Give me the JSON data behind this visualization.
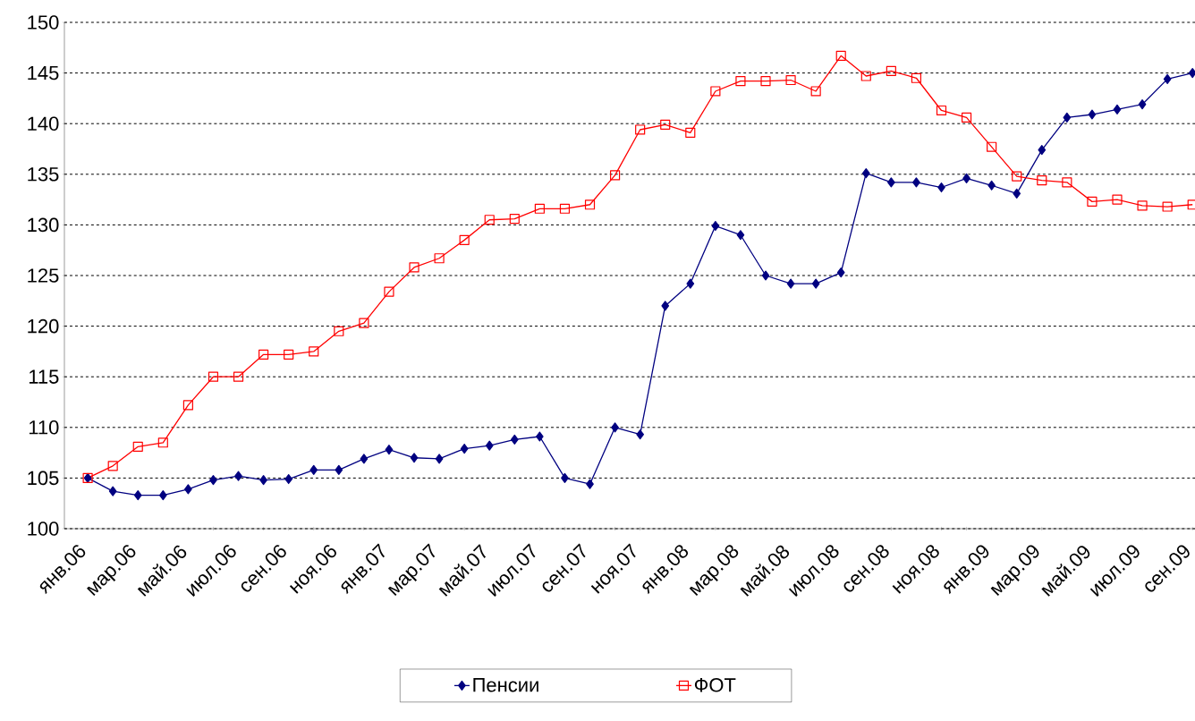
{
  "chart_data": {
    "type": "line",
    "categories": [
      "янв.06",
      null,
      "мар.06",
      null,
      "май.06",
      null,
      "июл.06",
      null,
      "сен.06",
      null,
      "ноя.06",
      null,
      "янв.07",
      null,
      "мар.07",
      null,
      "май.07",
      null,
      "июл.07",
      null,
      "сен.07",
      null,
      "ноя.07",
      null,
      "янв.08",
      null,
      "мар.08",
      null,
      "май.08",
      null,
      "июл.08",
      null,
      "сен.08",
      null,
      "ноя.08",
      null,
      "янв.09",
      null,
      "мар.09",
      null,
      "май.09",
      null,
      "июл.09",
      null,
      "сен.09"
    ],
    "series": [
      {
        "name": "Пенсии",
        "color": "#000080",
        "marker": "diamond",
        "line_style": "solid",
        "values": [
          105,
          103.7,
          103.3,
          103.3,
          103.9,
          104.8,
          105.2,
          104.8,
          104.9,
          105.8,
          105.8,
          106.9,
          107.8,
          107,
          106.9,
          107.9,
          108.2,
          108.8,
          109.1,
          105,
          104.4,
          110,
          109.3,
          122,
          124.2,
          129.9,
          129,
          125,
          124.2,
          124.2,
          125.3,
          135.1,
          134.2,
          134.2,
          133.7,
          134.6,
          133.9,
          133.1,
          137.4,
          140.6,
          140.9,
          141.4,
          141.9,
          144.4,
          145
        ]
      },
      {
        "name": "ФОТ",
        "color": "#ff0000",
        "marker": "square",
        "line_style": "solid",
        "values": [
          105,
          106.2,
          108.1,
          108.5,
          112.2,
          115,
          115,
          117.2,
          117.2,
          117.5,
          119.5,
          120.3,
          123.4,
          125.8,
          126.7,
          128.5,
          130.5,
          130.6,
          131.6,
          131.6,
          132,
          134.9,
          139.4,
          139.9,
          139.1,
          143.2,
          144.2,
          144.2,
          144.3,
          143.2,
          146.7,
          144.7,
          145.2,
          144.5,
          141.3,
          140.6,
          137.7,
          134.8,
          134.4,
          134.2,
          132.3,
          132.5,
          131.9,
          131.8,
          132
        ]
      }
    ],
    "ylim": [
      100,
      150
    ],
    "yticks": [
      100,
      105,
      110,
      115,
      120,
      125,
      130,
      135,
      140,
      145,
      150
    ],
    "grid": "y",
    "legend": "bottom"
  }
}
